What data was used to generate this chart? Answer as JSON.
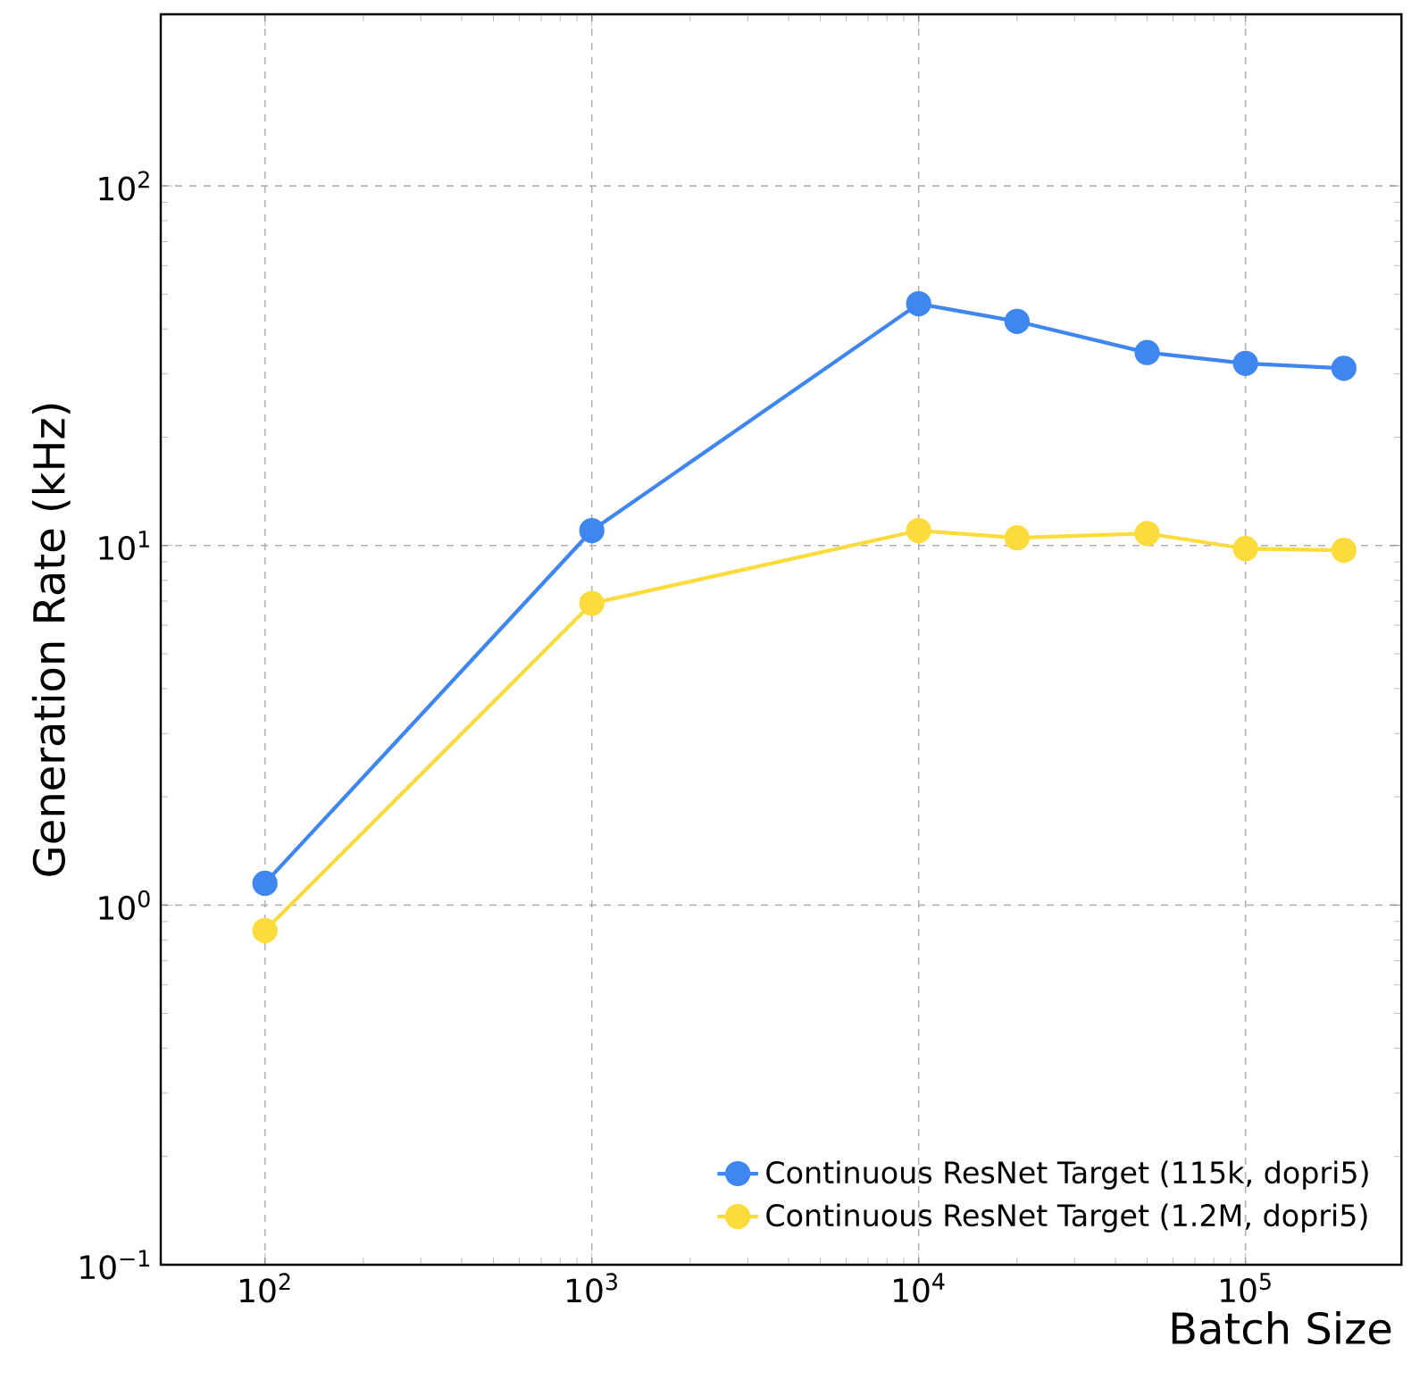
{
  "chart_data": {
    "type": "line",
    "xlabel": "Batch Size",
    "ylabel": "Generation Rate (kHz)",
    "x": [
      100,
      1000,
      10000,
      20000,
      50000,
      100000,
      200000
    ],
    "series": [
      {
        "name": "Continuous ResNet Target (115k, dopri5)",
        "color": "#3f86f0",
        "values": [
          1.15,
          11.0,
          47,
          42,
          34.4,
          32.1,
          31.1
        ]
      },
      {
        "name": "Continuous ResNet Target (1.2M, dopri5)",
        "color": "#fbdc3c",
        "values": [
          0.85,
          6.9,
          11.0,
          10.5,
          10.8,
          9.8,
          9.7
        ]
      }
    ],
    "log": "xy",
    "xlim": [
      48,
      300000
    ],
    "ylim": [
      0.1,
      300
    ],
    "xticks": [
      {
        "value": 100,
        "label": "10$^{2}$"
      },
      {
        "value": 1000,
        "label": "10$^{3}$"
      },
      {
        "value": 10000,
        "label": "10$^{4}$"
      },
      {
        "value": 100000,
        "label": "10$^{5}$"
      }
    ],
    "yticks": [
      {
        "value": 0.1,
        "label": "10$^{−1}$"
      },
      {
        "value": 1,
        "label": "10$^{0}$"
      },
      {
        "value": 10,
        "label": "10$^{1}$"
      },
      {
        "value": 100,
        "label": "10$^{2}$"
      }
    ],
    "grid": true,
    "legend": "bottom right",
    "marker": "circle"
  }
}
